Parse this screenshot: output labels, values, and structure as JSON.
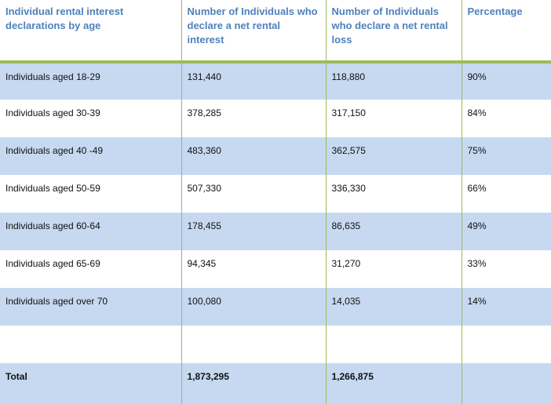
{
  "table": {
    "headers": [
      "Individual rental interest declarations by age",
      "Number of Individuals who declare a net rental interest",
      "Number of Individuals who declare a net rental loss",
      "Percentage"
    ],
    "rows": [
      [
        "Individuals aged 18-29",
        "131,440",
        "118,880",
        "90%"
      ],
      [
        "Individuals aged 30-39",
        "378,285",
        "317,150",
        "84%"
      ],
      [
        "Individuals aged 40 -49",
        "483,360",
        "362,575",
        "75%"
      ],
      [
        "Individuals aged 50-59",
        "507,330",
        "336,330",
        "66%"
      ],
      [
        "Individuals aged 60-64",
        "178,455",
        "86,635",
        "49%"
      ],
      [
        "Individuals aged 65-69",
        "94,345",
        "31,270",
        "33%"
      ],
      [
        "Individuals aged over 70",
        "100,080",
        "14,035",
        "14%"
      ],
      [
        "",
        "",
        "",
        ""
      ],
      [
        "Total",
        "1,873,295",
        "1,266,875",
        ""
      ]
    ]
  },
  "colors": {
    "header_text": "#4f81bd",
    "rule": "#9bbb59",
    "band": "#c6d9f0"
  }
}
